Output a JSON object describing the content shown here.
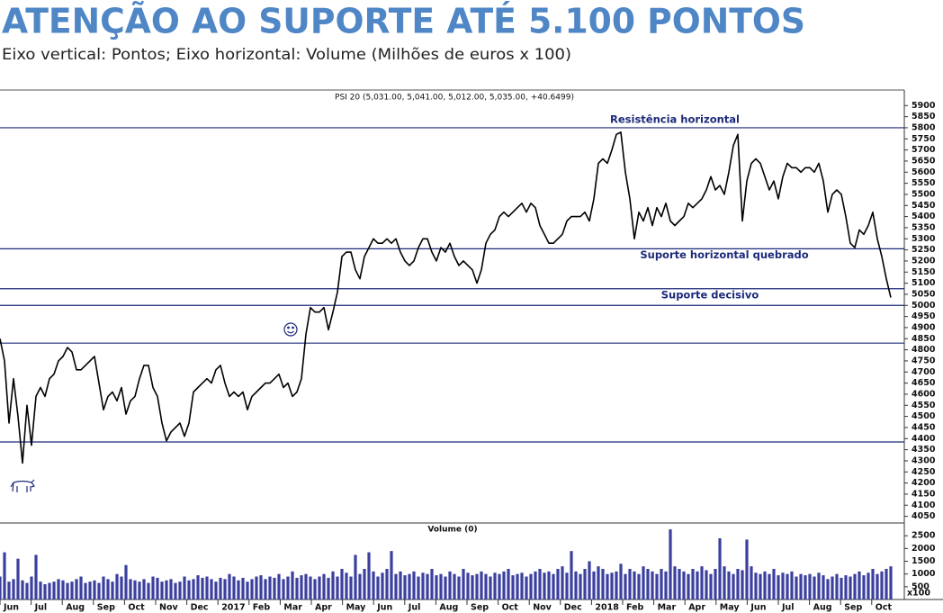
{
  "title": "ATENÇÃO AO SUPORTE ATÉ 5.100 PONTOS",
  "subtitle": "Eixo vertical: Pontos; Eixo horizontal: Volume (Milhões de euros x 100)",
  "chart_data": [
    {
      "type": "line",
      "title": "PSI 20 (5,031.00, 5,041.00, 5,012.00, 5,035.00, +40.6499)",
      "color": "#000000",
      "ylim": [
        4020,
        5970
      ],
      "yticks": [
        4050,
        4100,
        4150,
        4200,
        4250,
        4300,
        4350,
        4400,
        4450,
        4500,
        4550,
        4600,
        4650,
        4700,
        4750,
        4800,
        4850,
        4900,
        4950,
        5000,
        5050,
        5100,
        5150,
        5200,
        5250,
        5300,
        5350,
        5400,
        5450,
        5500,
        5550,
        5600,
        5650,
        5700,
        5750,
        5800,
        5850,
        5900
      ],
      "reference_line_color": "#1d2a7a",
      "reference_lines": [
        {
          "value": 5800,
          "label": "Resistência horizontal"
        },
        {
          "value": 5255,
          "label": "Suporte horizontal quebrado"
        },
        {
          "value": 5075,
          "label": "Suporte decisivo"
        },
        {
          "value": 5000
        },
        {
          "value": 4830
        },
        {
          "value": 4385
        }
      ],
      "values": [
        4850,
        4750,
        4470,
        4670,
        4500,
        4290,
        4550,
        4370,
        4590,
        4630,
        4590,
        4670,
        4690,
        4750,
        4770,
        4810,
        4790,
        4710,
        4710,
        4730,
        4750,
        4770,
        4650,
        4530,
        4590,
        4610,
        4570,
        4630,
        4510,
        4570,
        4590,
        4670,
        4730,
        4730,
        4630,
        4590,
        4470,
        4390,
        4430,
        4450,
        4470,
        4410,
        4470,
        4610,
        4630,
        4650,
        4670,
        4650,
        4710,
        4730,
        4650,
        4590,
        4610,
        4590,
        4610,
        4530,
        4590,
        4610,
        4630,
        4650,
        4650,
        4670,
        4690,
        4630,
        4650,
        4590,
        4610,
        4670,
        4870,
        4990,
        4970,
        4970,
        4990,
        4890,
        4970,
        5060,
        5220,
        5240,
        5240,
        5160,
        5120,
        5220,
        5260,
        5300,
        5280,
        5280,
        5300,
        5280,
        5300,
        5240,
        5200,
        5180,
        5200,
        5260,
        5300,
        5300,
        5240,
        5200,
        5260,
        5240,
        5280,
        5220,
        5180,
        5200,
        5180,
        5160,
        5100,
        5160,
        5280,
        5320,
        5340,
        5400,
        5420,
        5400,
        5420,
        5440,
        5460,
        5420,
        5460,
        5440,
        5360,
        5320,
        5280,
        5280,
        5300,
        5320,
        5380,
        5400,
        5400,
        5400,
        5420,
        5380,
        5480,
        5640,
        5660,
        5640,
        5700,
        5770,
        5780,
        5600,
        5480,
        5300,
        5420,
        5380,
        5440,
        5360,
        5440,
        5400,
        5460,
        5380,
        5360,
        5380,
        5400,
        5460,
        5440,
        5460,
        5480,
        5520,
        5580,
        5520,
        5540,
        5500,
        5600,
        5720,
        5770,
        5380,
        5560,
        5640,
        5660,
        5640,
        5580,
        5520,
        5560,
        5480,
        5580,
        5640,
        5620,
        5620,
        5600,
        5620,
        5620,
        5600,
        5640,
        5560,
        5420,
        5500,
        5520,
        5500,
        5400,
        5280,
        5260,
        5340,
        5320,
        5360,
        5420,
        5300,
        5220,
        5120,
        5035
      ]
    },
    {
      "type": "bar",
      "title": "Volume (0)",
      "color": "#3b3f9e",
      "ylim": [
        0,
        3000
      ],
      "yticks": [
        500,
        1000,
        1500,
        2000,
        2500
      ],
      "unit_label": "x100",
      "months": [
        "Jun",
        "Jul",
        "Aug",
        "Sep",
        "Oct",
        "Nov",
        "Dec",
        "2017",
        "Feb",
        "Mar",
        "Apr",
        "May",
        "Jun",
        "Jul",
        "Aug",
        "Sep",
        "Oct",
        "Nov",
        "Dec",
        "2018",
        "Feb",
        "Mar",
        "Apr",
        "May",
        "Jun",
        "Jul",
        "Aug",
        "Sep",
        "Oct"
      ],
      "values": [
        900,
        1850,
        700,
        800,
        1600,
        750,
        650,
        900,
        1750,
        700,
        600,
        650,
        700,
        800,
        750,
        650,
        700,
        800,
        900,
        650,
        700,
        750,
        650,
        900,
        800,
        700,
        1000,
        900,
        1350,
        800,
        750,
        700,
        800,
        650,
        900,
        850,
        700,
        750,
        800,
        650,
        700,
        900,
        750,
        800,
        950,
        850,
        900,
        800,
        700,
        850,
        800,
        1000,
        900,
        750,
        850,
        700,
        800,
        900,
        950,
        800,
        900,
        850,
        1000,
        800,
        900,
        1100,
        850,
        950,
        1000,
        900,
        800,
        900,
        1000,
        850,
        1100,
        900,
        1200,
        1050,
        900,
        1750,
        1000,
        1200,
        1850,
        1100,
        900,
        1050,
        1200,
        1900,
        1000,
        1100,
        950,
        1000,
        1100,
        900,
        1050,
        1000,
        1200,
        950,
        1000,
        900,
        1100,
        1000,
        900,
        1200,
        1050,
        950,
        1000,
        1100,
        1000,
        900,
        1050,
        1000,
        1100,
        1200,
        950,
        1000,
        1050,
        900,
        1000,
        1100,
        1200,
        1050,
        1100,
        1000,
        1200,
        1300,
        1050,
        1900,
        1100,
        1000,
        1200,
        1500,
        1100,
        1300,
        1200,
        1000,
        1050,
        1100,
        1400,
        1000,
        1200,
        1100,
        1000,
        1300,
        1200,
        1100,
        1000,
        1200,
        1100,
        2750,
        1300,
        1200,
        1100,
        1000,
        1200,
        1100,
        1300,
        1150,
        1000,
        1200,
        2400,
        1300,
        1100,
        1000,
        1200,
        1150,
        2350,
        1300,
        1050,
        1000,
        1100,
        1000,
        1200,
        950,
        1050,
        1000,
        1100,
        900,
        1000,
        950,
        1000,
        900,
        1050,
        950,
        800,
        900,
        1000,
        850,
        950,
        900,
        1000,
        1100,
        950,
        1050,
        1200,
        1000,
        1100,
        1200,
        1300
      ]
    }
  ]
}
